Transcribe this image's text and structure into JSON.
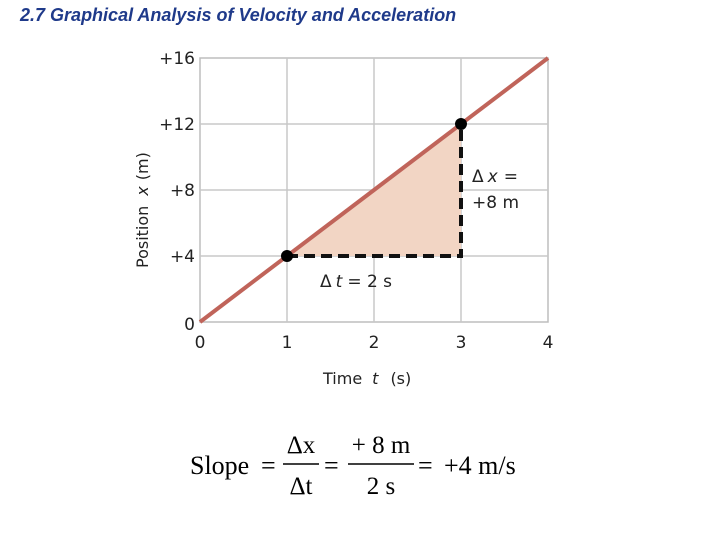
{
  "title": {
    "number": "2.7",
    "text": "Graphical Analysis of Velocity and Acceleration"
  },
  "chart_data": {
    "type": "line",
    "x": [
      0,
      4
    ],
    "y": [
      0,
      16
    ],
    "xlim": [
      0,
      4
    ],
    "ylim": [
      0,
      16
    ],
    "x_ticks": [
      "0",
      "1",
      "2",
      "3",
      "4"
    ],
    "y_ticks": [
      "0",
      "+4",
      "+8",
      "+12",
      "+16"
    ],
    "xlabel": {
      "prefix": "Time",
      "var": "t",
      "unit": "(s)"
    },
    "ylabel": {
      "prefix": "Position",
      "var": "x",
      "unit": "(m)"
    },
    "grid": true,
    "line_color": "#c0645a",
    "fill_color": "#f2d5c4",
    "points": [
      {
        "x": 1,
        "y": 4
      },
      {
        "x": 3,
        "y": 12
      }
    ],
    "annotations": {
      "delta_t": {
        "delta": "Δ",
        "var": "t",
        "rest": "= 2 s"
      },
      "delta_x": {
        "delta": "Δ",
        "var": "x",
        "rest": "=",
        "value": "+8 m"
      }
    }
  },
  "formula": {
    "slope_word": "Slope",
    "eq": "=",
    "num1": "Δx",
    "den1": "Δt",
    "num2": "+ 8 m",
    "den2": "2 s",
    "result": "+4 m/s"
  }
}
